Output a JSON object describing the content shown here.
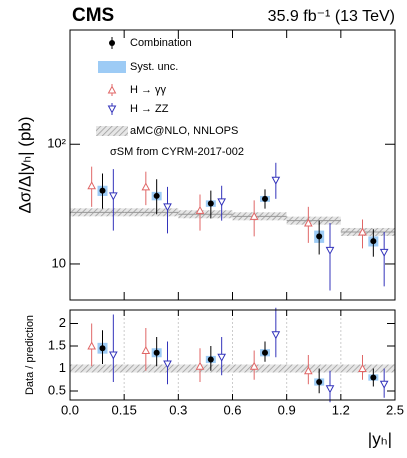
{
  "chart_data": {
    "type": "errorbar",
    "experiment": "CMS",
    "luminosity": "35.9 fb⁻¹ (13 TeV)",
    "ylabel": "Δσ/Δ|yₕ| (pb)",
    "xlabel": "|yₕ|",
    "note": "σSM from CYRM-2017-002",
    "log_y": true,
    "x_edges": [
      0,
      0.15,
      0.3,
      0.6,
      0.9,
      1.2,
      2.5
    ],
    "xticks": [
      {
        "value": 0,
        "label": "0.0"
      },
      0.15,
      0.3,
      0.6,
      0.9,
      1.2,
      2.5
    ],
    "ylim": [
      5,
      900
    ],
    "yticks": [
      10,
      {
        "value": 100,
        "label": "10²"
      }
    ],
    "syst_name": "Syst. unc.",
    "syst_color": "#9dcbf5",
    "series": [
      {
        "name": "Combination",
        "color": "#000000",
        "marker": "dot",
        "offset": 0.6,
        "values": [
          41,
          37,
          32,
          35,
          17,
          15.5
        ],
        "err_up": [
          16,
          14,
          9,
          7,
          6,
          4
        ],
        "err_down": [
          12,
          11,
          8,
          6,
          5,
          4
        ],
        "syst": [
          4,
          3,
          2,
          2,
          2,
          1.5
        ]
      },
      {
        "name": "H → γγ",
        "color": "#e06666",
        "marker": "triangle-up",
        "offset": 0.4,
        "values": [
          45,
          44,
          28,
          25,
          22,
          18.5
        ],
        "err_up": [
          20,
          15,
          10,
          9,
          8,
          5
        ],
        "err_down": [
          15,
          13,
          9,
          8,
          7,
          5
        ]
      },
      {
        "name": "H → ZZ",
        "color": "#3333bb",
        "marker": "triangle-down",
        "offset": 0.8,
        "values": [
          37,
          30,
          33,
          50,
          13,
          12.5
        ],
        "err_up": [
          25,
          14,
          12,
          20,
          9,
          6
        ],
        "err_down": [
          18,
          12,
          10,
          15,
          7,
          6
        ]
      }
    ],
    "prediction": {
      "name": "aMC@NLO, NNLOPS",
      "color": "#999999",
      "values": [
        27,
        27,
        26,
        25,
        23,
        18.5
      ]
    },
    "ratio": {
      "ylabel": "Data / prediction",
      "ylim": [
        0.3,
        2.3
      ],
      "yticks": [
        0.5,
        1,
        1.5,
        2
      ],
      "reference": 1,
      "grid": true,
      "series": [
        {
          "values": [
            1.45,
            1.35,
            1.2,
            1.35,
            0.7,
            0.8
          ],
          "err_up": [
            0.4,
            0.35,
            0.3,
            0.25,
            0.3,
            0.2
          ],
          "err_down": [
            0.35,
            0.3,
            0.25,
            0.2,
            0.25,
            0.2
          ],
          "syst": [
            0.12,
            0.1,
            0.08,
            0.08,
            0.08,
            0.07
          ]
        },
        {
          "values": [
            1.5,
            1.4,
            1.05,
            1.05,
            0.95,
            1.0
          ],
          "err_up": [
            0.5,
            0.5,
            0.4,
            0.35,
            0.35,
            0.3
          ],
          "err_down": [
            0.45,
            0.45,
            0.35,
            0.3,
            0.3,
            0.25
          ]
        },
        {
          "values": [
            1.3,
            1.1,
            1.25,
            1.75,
            0.55,
            0.65
          ],
          "err_up": [
            0.9,
            0.5,
            0.45,
            0.6,
            0.4,
            0.35
          ],
          "err_down": [
            0.6,
            0.45,
            0.4,
            0.5,
            0.3,
            0.3
          ]
        }
      ]
    }
  }
}
